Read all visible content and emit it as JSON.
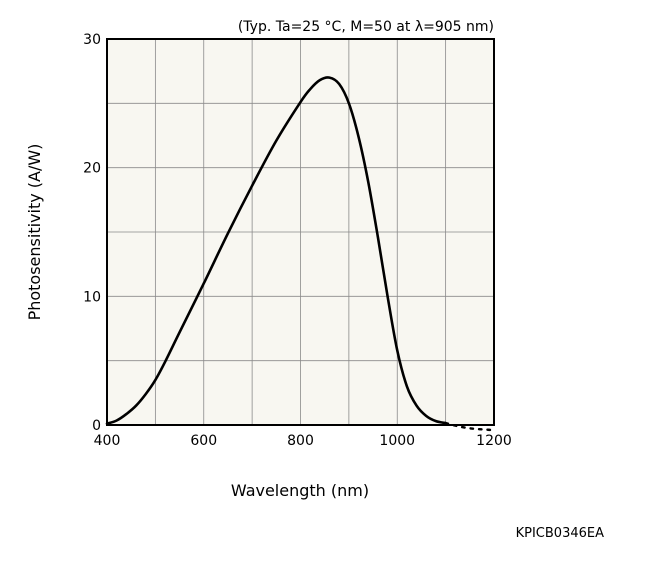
{
  "chart_data": {
    "type": "line",
    "condition_note": "(Typ. Ta=25 °C, M=50 at λ=905 nm)",
    "xlabel": "Wavelength (nm)",
    "ylabel": "Photosensitivity (A/W)",
    "xlim": [
      400,
      1200
    ],
    "ylim": [
      0,
      30
    ],
    "xticks": [
      400,
      600,
      800,
      1000,
      1200
    ],
    "yticks": [
      0,
      10,
      20,
      30
    ],
    "x_tick_labels": [
      "400",
      "600",
      "800",
      "1000",
      "1200"
    ],
    "y_tick_labels": [
      "0",
      "10",
      "20",
      "30"
    ],
    "grid": true,
    "legend": "none",
    "colors": {
      "plot_background": "#f8f7f1",
      "grid": "#8a8a8a",
      "line": "#000000"
    },
    "series": [
      {
        "style": "solid",
        "x": [
          400,
          420,
          440,
          460,
          480,
          500,
          520,
          550,
          600,
          650,
          700,
          750,
          800,
          820,
          840,
          860,
          880,
          900,
          920,
          940,
          960,
          980,
          1000,
          1020,
          1040,
          1060,
          1080,
          1100
        ],
        "y": [
          0.1,
          0.35,
          0.85,
          1.5,
          2.4,
          3.5,
          4.9,
          7.2,
          11.0,
          14.9,
          18.6,
          22.1,
          25.1,
          26.1,
          26.8,
          27.0,
          26.5,
          25.0,
          22.4,
          18.9,
          14.6,
          10.0,
          5.8,
          3.0,
          1.5,
          0.7,
          0.3,
          0.15
        ]
      },
      {
        "style": "dotted",
        "x": [
          1100,
          1120,
          1140,
          1160,
          1180,
          1200
        ],
        "y": [
          0.15,
          -0.05,
          -0.2,
          -0.3,
          -0.35,
          -0.4
        ]
      }
    ]
  },
  "footer": {
    "code": "KPICB0346EA"
  }
}
